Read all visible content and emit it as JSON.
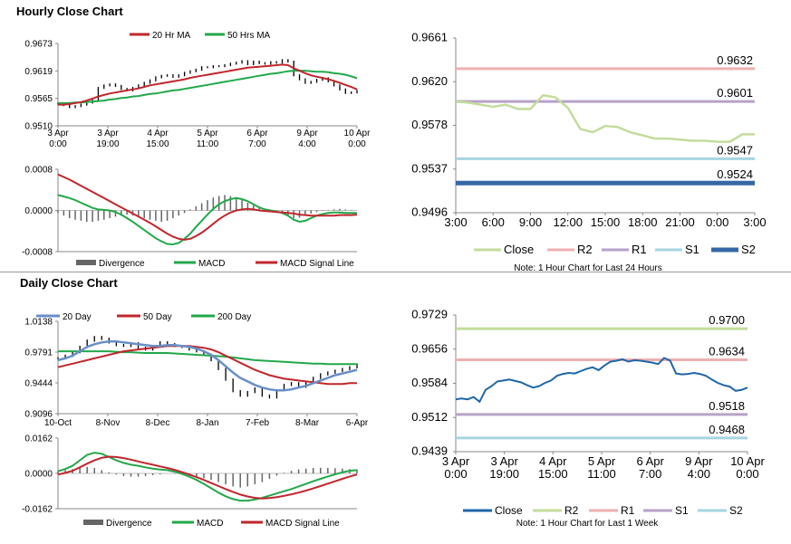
{
  "sections": {
    "hourly_title": "Hourly Close Chart",
    "daily_title": "Daily Close Chart"
  },
  "colors": {
    "ma_short": "#c0262d",
    "ma_long": "#22a84a",
    "close_blue": "#1f65a8",
    "close_green": "#c3dc9c",
    "r2_green": "#c3dc9c",
    "r1_pink": "#eeb0b0",
    "s1_purple": "#b6a2c8",
    "s2_cyan": "#a6d5e0",
    "s2_darkblue": "#3667a6",
    "twenty_day": "#6a8fc7",
    "divergence": "#666666"
  },
  "chart_data": [
    {
      "id": "hourly-price",
      "type": "line",
      "title": "",
      "legend": [
        "20 Hr MA",
        "50 Hrs MA"
      ],
      "ylim": [
        0.951,
        0.9673
      ],
      "yticks": [
        "0.9673",
        "0.9619",
        "0.9565",
        "0.9510"
      ],
      "xticks": [
        "3 Apr\n0:00",
        "3 Apr\n19:00",
        "4 Apr\n15:00",
        "5 Apr\n11:00",
        "6 Apr\n7:00",
        "9 Apr\n4:00",
        "10 Apr\n0:00"
      ],
      "series": [
        {
          "name": "Close",
          "values": [
            0.9554,
            0.9551,
            0.9547,
            0.9549,
            0.9552,
            0.9556,
            0.956,
            0.9585,
            0.959,
            0.9592,
            0.9589,
            0.9583,
            0.958,
            0.9585,
            0.959,
            0.9595,
            0.96,
            0.9606,
            0.9609,
            0.961,
            0.9607,
            0.961,
            0.9615,
            0.9618,
            0.9621,
            0.9626,
            0.9626,
            0.9628,
            0.9628,
            0.963,
            0.9633,
            0.9635,
            0.9638,
            0.9632,
            0.9637,
            0.9634,
            0.9633,
            0.9636,
            0.9635,
            0.964,
            0.9637,
            0.961,
            0.9602,
            0.9595,
            0.9597,
            0.9601,
            0.9604,
            0.9598,
            0.959,
            0.9582,
            0.9575,
            0.9576,
            0.9579
          ]
        },
        {
          "name": "20 Hr MA",
          "values": [
            0.9552,
            0.9552,
            0.9553,
            0.9555,
            0.9557,
            0.956,
            0.9564,
            0.9568,
            0.9571,
            0.9574,
            0.9576,
            0.9578,
            0.958,
            0.9582,
            0.9584,
            0.9587,
            0.959,
            0.9592,
            0.9594,
            0.9596,
            0.9598,
            0.96,
            0.9602,
            0.9605,
            0.9607,
            0.9609,
            0.9611,
            0.9613,
            0.9615,
            0.9617,
            0.9619,
            0.9621,
            0.9623,
            0.9625,
            0.9626,
            0.9627,
            0.9628,
            0.9629,
            0.963,
            0.9631,
            0.963,
            0.9624,
            0.9619,
            0.9614,
            0.961,
            0.9607,
            0.9605,
            0.9602,
            0.9599,
            0.9595,
            0.9591,
            0.9587,
            0.9582
          ]
        },
        {
          "name": "50 Hrs MA",
          "values": [
            0.9555,
            0.9555,
            0.9555,
            0.9556,
            0.9556,
            0.9557,
            0.9558,
            0.9559,
            0.956,
            0.9562,
            0.9563,
            0.9565,
            0.9566,
            0.9568,
            0.9569,
            0.9571,
            0.9573,
            0.9574,
            0.9576,
            0.9578,
            0.958,
            0.9581,
            0.9583,
            0.9585,
            0.9587,
            0.9589,
            0.9591,
            0.9593,
            0.9595,
            0.9597,
            0.9599,
            0.9601,
            0.9603,
            0.9605,
            0.9607,
            0.9609,
            0.9611,
            0.9613,
            0.9614,
            0.9616,
            0.9618,
            0.9619,
            0.9619,
            0.9619,
            0.9618,
            0.9617,
            0.9617,
            0.9616,
            0.9614,
            0.9613,
            0.9611,
            0.9608,
            0.9604
          ]
        }
      ]
    },
    {
      "id": "hourly-macd",
      "type": "bar",
      "ylim": [
        -0.0008,
        0.0008
      ],
      "yticks": [
        "0.0008",
        "0.0000",
        "-0.0008"
      ],
      "legend": [
        "Divergence",
        "MACD",
        "MACD Signal Line"
      ],
      "series": [
        {
          "name": "Divergence",
          "values": [
            -5e-05,
            -0.0001,
            -0.00015,
            -0.00018,
            -0.0002,
            -0.00022,
            -0.00022,
            -0.0002,
            -0.00018,
            -0.00015,
            -0.00012,
            -0.0001,
            -8e-05,
            -0.0001,
            -0.00012,
            -0.00015,
            -0.00018,
            -0.0002,
            -0.00022,
            -0.0002,
            -0.00015,
            -0.0001,
            -5e-05,
            2e-05,
            8e-05,
            0.00014,
            0.0002,
            0.00025,
            0.00028,
            0.0003,
            0.00028,
            0.00025,
            0.0002,
            0.00015,
            0.0001,
            6e-05,
            3e-05,
            1e-05,
            -2e-05,
            -5e-05,
            -0.0001,
            -0.00015,
            -0.00014,
            -0.0001,
            -6e-05,
            -3e-05,
            -1e-05,
            1e-05,
            2e-05,
            3e-05,
            2e-05,
            1e-05,
            0.0
          ]
        },
        {
          "name": "MACD",
          "values": [
            0.0003,
            0.00027,
            0.00024,
            0.0002,
            0.00015,
            0.0001,
            5e-05,
            2e-05,
            1e-05,
            0.0,
            -3e-05,
            -8e-05,
            -0.00015,
            -0.00022,
            -0.0003,
            -0.00038,
            -0.00046,
            -0.00054,
            -0.0006,
            -0.00065,
            -0.00066,
            -0.00063,
            -0.00055,
            -0.00045,
            -0.00032,
            -0.0002,
            -8e-05,
            3e-05,
            0.00012,
            0.00018,
            0.00022,
            0.00024,
            0.00022,
            0.00018,
            0.00012,
            6e-05,
            2e-05,
            0.0,
            -2e-05,
            -5e-05,
            -0.0001,
            -0.00018,
            -0.00022,
            -0.0002,
            -0.00015,
            -0.0001,
            -7e-05,
            -5e-05,
            -4e-05,
            -4e-05,
            -5e-05,
            -5e-05,
            -5e-05
          ]
        },
        {
          "name": "MACD Signal Line",
          "values": [
            0.0007,
            0.00065,
            0.0006,
            0.00054,
            0.00048,
            0.00042,
            0.00036,
            0.0003,
            0.00024,
            0.00018,
            0.00012,
            6e-05,
            0.0,
            -6e-05,
            -0.00012,
            -0.00018,
            -0.00024,
            -0.00031,
            -0.00038,
            -0.00045,
            -0.00051,
            -0.00055,
            -0.00057,
            -0.00055,
            -0.0005,
            -0.00043,
            -0.00035,
            -0.00026,
            -0.00017,
            -0.0001,
            -4e-05,
            0.0,
            2e-05,
            3e-05,
            2e-05,
            0.0,
            -1e-05,
            -2e-05,
            -3e-05,
            -4e-05,
            -5e-05,
            -6e-05,
            -8e-05,
            -9e-05,
            -0.0001,
            -0.0001,
            -0.0001,
            -0.0001,
            -0.0001,
            -9e-05,
            -9e-05,
            -9e-05,
            -8e-05
          ]
        }
      ]
    },
    {
      "id": "hourly-24h",
      "type": "line",
      "ylim": [
        0.9496,
        0.9661
      ],
      "yticks": [
        "0.9661",
        "0.9620",
        "0.9578",
        "0.9537",
        "0.9496"
      ],
      "xticks": [
        "3:00",
        "6:00",
        "9:00",
        "12:00",
        "15:00",
        "18:00",
        "21:00",
        "0:00",
        "3:00"
      ],
      "levels": [
        {
          "name": "R2",
          "value": 0.9632,
          "label": "0.9632"
        },
        {
          "name": "R1",
          "value": 0.9601,
          "label": "0.9601"
        },
        {
          "name": "S1",
          "value": 0.9547,
          "label": "0.9547"
        },
        {
          "name": "S2",
          "value": 0.9524,
          "label": "0.9524"
        }
      ],
      "series": [
        {
          "name": "Close",
          "values": [
            0.9601,
            0.96,
            0.9598,
            0.9596,
            0.9598,
            0.9594,
            0.9594,
            0.9607,
            0.9605,
            0.9595,
            0.9575,
            0.9572,
            0.9578,
            0.9577,
            0.9572,
            0.9569,
            0.9566,
            0.9566,
            0.9565,
            0.9564,
            0.9564,
            0.9563,
            0.9563,
            0.957,
            0.957
          ]
        }
      ],
      "legend": [
        "Close",
        "R2",
        "R1",
        "S1",
        "S2"
      ],
      "note": "Note: 1 Hour Chart for Last 24 Hours"
    },
    {
      "id": "daily-price",
      "type": "line",
      "ylim": [
        0.9096,
        1.0138
      ],
      "yticks": [
        "1.0138",
        "0.9791",
        "0.9444",
        "0.9096"
      ],
      "xticks": [
        "10-Oct",
        "8-Nov",
        "8-Dec",
        "8-Jan",
        "7-Feb",
        "8-Mar",
        "6-Apr"
      ],
      "legend": [
        "20 Day",
        "50 Day",
        "200 Day"
      ],
      "series": [
        {
          "name": "Close",
          "values": [
            0.972,
            0.975,
            0.979,
            0.985,
            0.992,
            0.996,
            0.994,
            0.99,
            0.987,
            0.986,
            0.989,
            0.984,
            0.982,
            0.986,
            0.99,
            0.988,
            0.986,
            0.985,
            0.982,
            0.98,
            0.976,
            0.97,
            0.96,
            0.948,
            0.935,
            0.93,
            0.934,
            0.938,
            0.93,
            0.928,
            0.936,
            0.942,
            0.944,
            0.94,
            0.945,
            0.95,
            0.954,
            0.956,
            0.958,
            0.96,
            0.962,
            0.965
          ]
        },
        {
          "name": "20 Day",
          "values": [
            0.97,
            0.972,
            0.975,
            0.98,
            0.985,
            0.988,
            0.99,
            0.991,
            0.991,
            0.99,
            0.989,
            0.988,
            0.987,
            0.986,
            0.986,
            0.987,
            0.987,
            0.986,
            0.985,
            0.983,
            0.98,
            0.976,
            0.97,
            0.963,
            0.956,
            0.95,
            0.946,
            0.942,
            0.939,
            0.937,
            0.936,
            0.936,
            0.937,
            0.939,
            0.941,
            0.944,
            0.947,
            0.95,
            0.953,
            0.955,
            0.957,
            0.959
          ]
        },
        {
          "name": "50 Day",
          "values": [
            0.962,
            0.964,
            0.966,
            0.968,
            0.97,
            0.972,
            0.974,
            0.976,
            0.978,
            0.98,
            0.981,
            0.982,
            0.983,
            0.984,
            0.985,
            0.986,
            0.986,
            0.986,
            0.986,
            0.985,
            0.984,
            0.982,
            0.979,
            0.975,
            0.971,
            0.967,
            0.963,
            0.959,
            0.956,
            0.953,
            0.951,
            0.949,
            0.948,
            0.947,
            0.946,
            0.945,
            0.944,
            0.943,
            0.943,
            0.943,
            0.944,
            0.944
          ]
        },
        {
          "name": "200 Day",
          "values": [
            0.98,
            0.98,
            0.98,
            0.98,
            0.98,
            0.98,
            0.98,
            0.98,
            0.9795,
            0.979,
            0.979,
            0.9785,
            0.978,
            0.978,
            0.978,
            0.978,
            0.9775,
            0.977,
            0.9765,
            0.976,
            0.9755,
            0.975,
            0.9745,
            0.974,
            0.973,
            0.972,
            0.971,
            0.97,
            0.9695,
            0.969,
            0.9685,
            0.968,
            0.9675,
            0.967,
            0.9665,
            0.966,
            0.966,
            0.9655,
            0.9655,
            0.9655,
            0.9655,
            0.9655
          ]
        }
      ]
    },
    {
      "id": "daily-macd",
      "type": "bar",
      "ylim": [
        -0.0162,
        0.0162
      ],
      "yticks": [
        "0.0162",
        "0.0000",
        "-0.0162"
      ],
      "legend": [
        "Divergence",
        "MACD",
        "MACD Signal Line"
      ],
      "series": [
        {
          "name": "Divergence",
          "values": [
            0.001,
            0.0015,
            0.002,
            0.0025,
            0.003,
            0.0025,
            0.0015,
            0.0005,
            -0.0005,
            -0.0012,
            -0.0015,
            -0.0015,
            -0.0012,
            -0.0008,
            -0.0004,
            0.0,
            -0.0002,
            -0.0006,
            -0.001,
            -0.0015,
            -0.0022,
            -0.003,
            -0.004,
            -0.005,
            -0.006,
            -0.0065,
            -0.006,
            -0.005,
            -0.004,
            -0.0025,
            -0.001,
            0.0003,
            0.0012,
            0.0018,
            0.0022,
            0.0025,
            0.0026,
            0.0025,
            0.0024,
            0.0022,
            0.002,
            0.0018
          ]
        },
        {
          "name": "MACD",
          "values": [
            0.001,
            0.002,
            0.0035,
            0.006,
            0.0085,
            0.0095,
            0.009,
            0.0075,
            0.006,
            0.0048,
            0.004,
            0.0035,
            0.0028,
            0.0022,
            0.0018,
            0.0015,
            0.0008,
            -0.0002,
            -0.0015,
            -0.003,
            -0.0048,
            -0.0068,
            -0.0088,
            -0.0105,
            -0.0118,
            -0.0125,
            -0.0125,
            -0.012,
            -0.0112,
            -0.0102,
            -0.0092,
            -0.0082,
            -0.0072,
            -0.006,
            -0.0048,
            -0.0036,
            -0.0025,
            -0.0014,
            -0.0004,
            0.0005,
            0.0012,
            0.0015
          ]
        },
        {
          "name": "MACD Signal Line",
          "values": [
            -0.0005,
            0.0002,
            0.0012,
            0.0028,
            0.0045,
            0.006,
            0.0072,
            0.0077,
            0.0075,
            0.007,
            0.0063,
            0.0055,
            0.0047,
            0.004,
            0.0032,
            0.0025,
            0.0016,
            0.0006,
            -0.0005,
            -0.0017,
            -0.003,
            -0.0044,
            -0.0058,
            -0.0072,
            -0.0085,
            -0.0097,
            -0.0106,
            -0.0112,
            -0.0115,
            -0.0113,
            -0.0109,
            -0.0103,
            -0.0096,
            -0.0088,
            -0.0079,
            -0.0069,
            -0.0058,
            -0.0047,
            -0.0036,
            -0.0025,
            -0.0014,
            -0.0005
          ]
        }
      ]
    },
    {
      "id": "daily-week",
      "type": "line",
      "ylim": [
        0.9439,
        0.9729
      ],
      "yticks": [
        "0.9729",
        "0.9656",
        "0.9584",
        "0.9512",
        "0.9439"
      ],
      "xticks": [
        "3 Apr\n0:00",
        "3 Apr\n19:00",
        "4 Apr\n15:00",
        "5 Apr\n11:00",
        "6 Apr\n7:00",
        "9 Apr\n4:00",
        "10 Apr\n0:00"
      ],
      "levels": [
        {
          "name": "R2",
          "value": 0.97,
          "label": "0.9700"
        },
        {
          "name": "R1",
          "value": 0.9634,
          "label": "0.9634"
        },
        {
          "name": "S1",
          "value": 0.9518,
          "label": "0.9518"
        },
        {
          "name": "S2",
          "value": 0.9468,
          "label": "0.9468"
        }
      ],
      "series": [
        {
          "name": "Close",
          "values": [
            0.955,
            0.9552,
            0.955,
            0.9555,
            0.9545,
            0.957,
            0.9578,
            0.9588,
            0.959,
            0.9592,
            0.9589,
            0.9586,
            0.958,
            0.9575,
            0.9578,
            0.9585,
            0.959,
            0.96,
            0.9604,
            0.9606,
            0.9605,
            0.961,
            0.9615,
            0.9618,
            0.9612,
            0.9622,
            0.963,
            0.9632,
            0.9635,
            0.963,
            0.9633,
            0.9632,
            0.963,
            0.9628,
            0.9625,
            0.9638,
            0.9632,
            0.9605,
            0.9603,
            0.9604,
            0.9606,
            0.9604,
            0.96,
            0.9592,
            0.9585,
            0.958,
            0.9577,
            0.9568,
            0.957,
            0.9575
          ]
        }
      ],
      "legend": [
        "Close",
        "R2",
        "R1",
        "S1",
        "S2"
      ],
      "note": "Note: 1 Hour Chart for Last 1 Week"
    }
  ]
}
